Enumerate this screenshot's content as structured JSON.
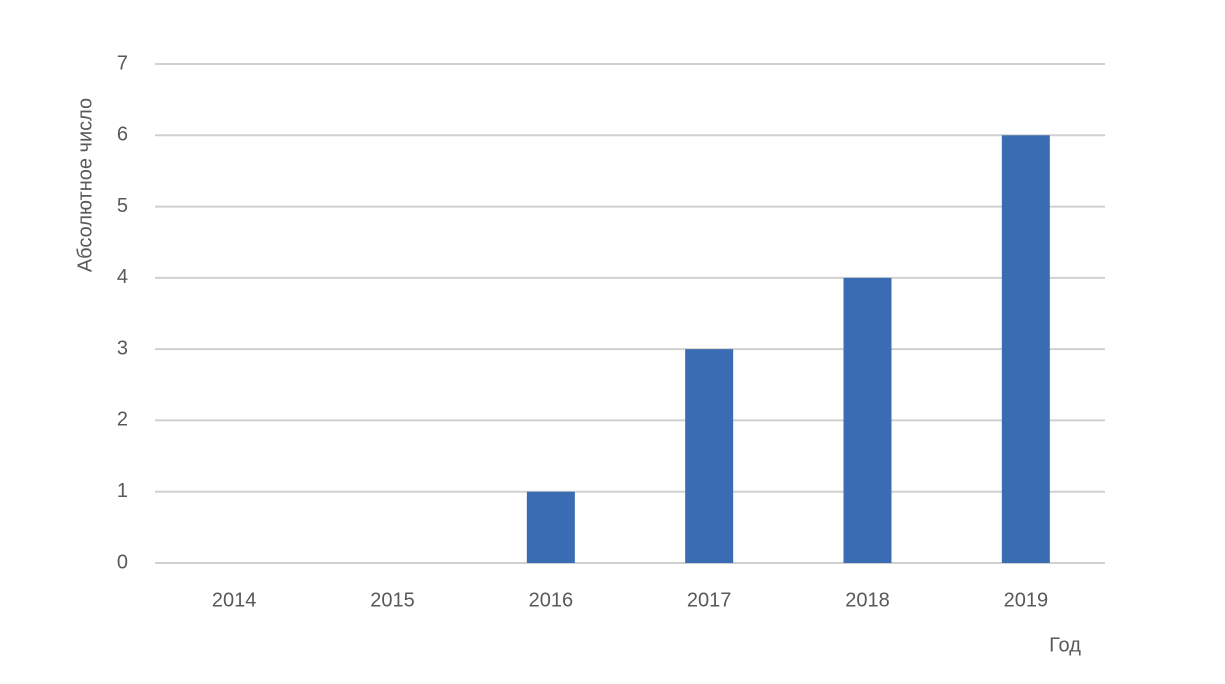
{
  "chart_data": {
    "type": "bar",
    "x_label": "Год",
    "y_label": "Абсолютное число",
    "categories": [
      "2014",
      "2015",
      "2016",
      "2017",
      "2018",
      "2019"
    ],
    "values": [
      0,
      0,
      1,
      3,
      4,
      6
    ],
    "color": "#3a6cb4",
    "ylim": [
      0,
      7
    ],
    "yticks": [
      0,
      1,
      2,
      3,
      4,
      5,
      6,
      7
    ],
    "grid": true
  }
}
